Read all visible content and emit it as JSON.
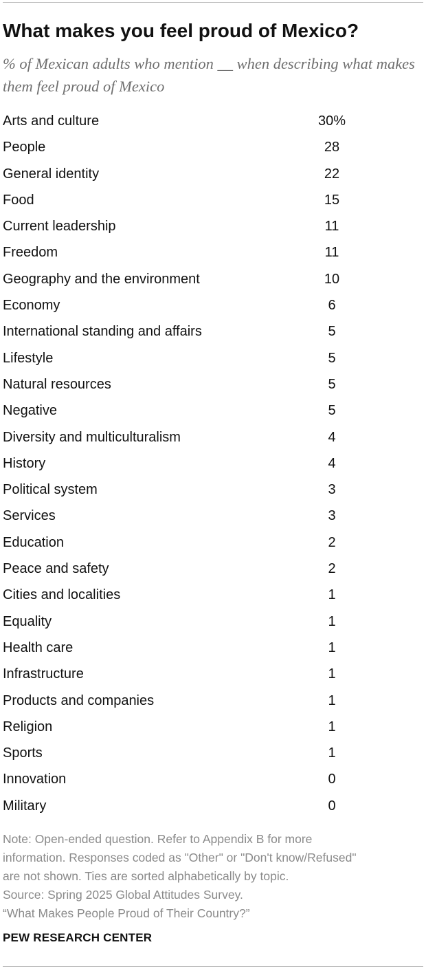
{
  "title": "What makes you feel proud of Mexico?",
  "subtitle": "% of Mexican adults who mention __ when describing what makes them feel proud of Mexico",
  "chart_data": {
    "type": "table",
    "title": "What makes you feel proud of Mexico?",
    "subtitle": "% of Mexican adults who mention __ when describing what makes them feel proud of Mexico",
    "rows": [
      {
        "label": "Arts and culture",
        "value": 30,
        "display": "30%"
      },
      {
        "label": "People",
        "value": 28,
        "display": "28"
      },
      {
        "label": "General identity",
        "value": 22,
        "display": "22"
      },
      {
        "label": "Food",
        "value": 15,
        "display": "15"
      },
      {
        "label": "Current leadership",
        "value": 11,
        "display": "11"
      },
      {
        "label": "Freedom",
        "value": 11,
        "display": "11"
      },
      {
        "label": "Geography and the environment",
        "value": 10,
        "display": "10"
      },
      {
        "label": "Economy",
        "value": 6,
        "display": "6"
      },
      {
        "label": "International standing and affairs",
        "value": 5,
        "display": "5"
      },
      {
        "label": "Lifestyle",
        "value": 5,
        "display": "5"
      },
      {
        "label": "Natural resources",
        "value": 5,
        "display": "5"
      },
      {
        "label": "Negative",
        "value": 5,
        "display": "5"
      },
      {
        "label": "Diversity and multiculturalism",
        "value": 4,
        "display": "4"
      },
      {
        "label": "History",
        "value": 4,
        "display": "4"
      },
      {
        "label": "Political system",
        "value": 3,
        "display": "3"
      },
      {
        "label": "Services",
        "value": 3,
        "display": "3"
      },
      {
        "label": "Education",
        "value": 2,
        "display": "2"
      },
      {
        "label": "Peace and safety",
        "value": 2,
        "display": "2"
      },
      {
        "label": "Cities and localities",
        "value": 1,
        "display": "1"
      },
      {
        "label": "Equality",
        "value": 1,
        "display": "1"
      },
      {
        "label": "Health care",
        "value": 1,
        "display": "1"
      },
      {
        "label": "Infrastructure",
        "value": 1,
        "display": "1"
      },
      {
        "label": "Products and companies",
        "value": 1,
        "display": "1"
      },
      {
        "label": "Religion",
        "value": 1,
        "display": "1"
      },
      {
        "label": "Sports",
        "value": 1,
        "display": "1"
      },
      {
        "label": "Innovation",
        "value": 0,
        "display": "0"
      },
      {
        "label": "Military",
        "value": 0,
        "display": "0"
      }
    ]
  },
  "notes": {
    "note_lines": [
      "Note: Open-ended question. Refer to Appendix B for more",
      "information. Responses coded as \"Other\" or \"Don't know/Refused\"",
      "are not shown. Ties are sorted alphabetically by topic."
    ],
    "source_line": "Source: Spring 2025 Global Attitudes Survey.",
    "report_line": "“What Makes People Proud of Their Country?”"
  },
  "brand": "PEW RESEARCH CENTER",
  "colors": {
    "text": "#111111",
    "subtitle": "#6f6f6f",
    "notes": "#8a8a8a",
    "rule": "#bdbdbd"
  }
}
